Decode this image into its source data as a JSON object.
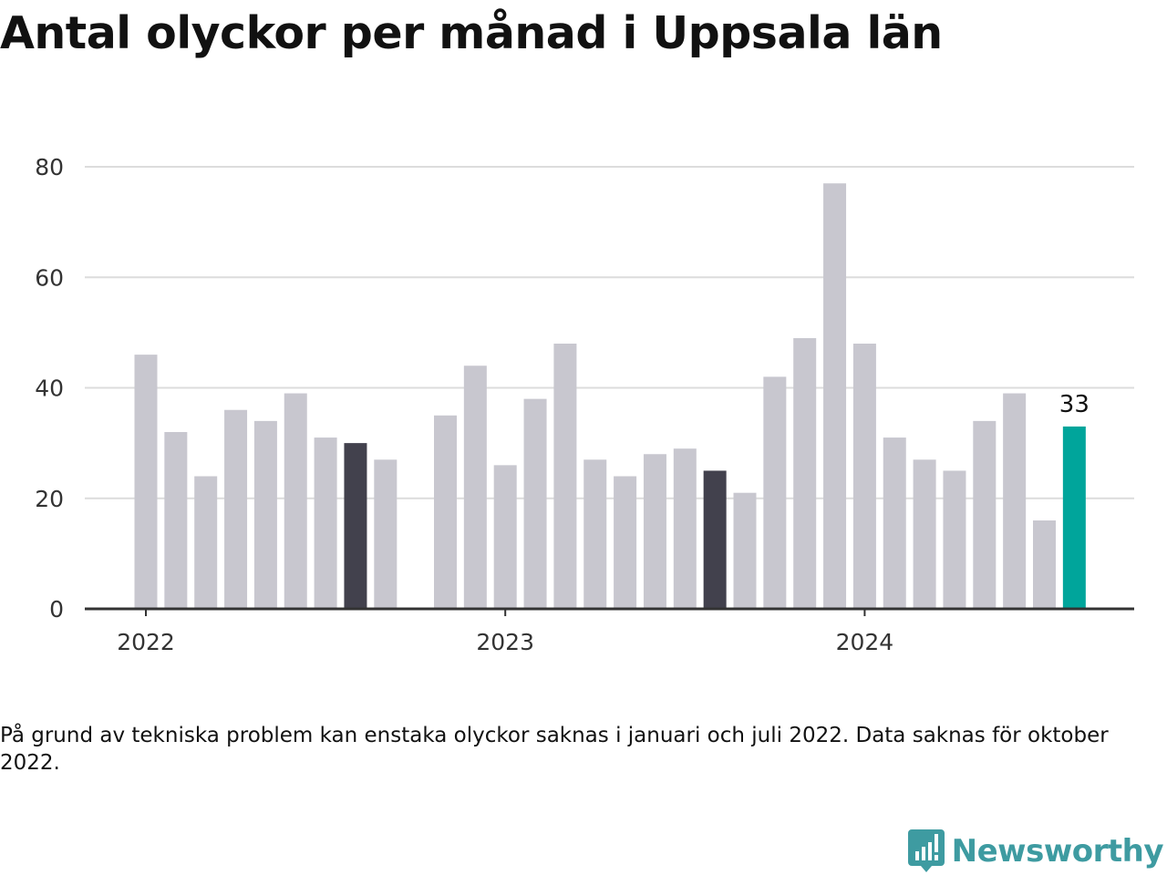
{
  "title": "Antal olyckor per månad i Uppsala län",
  "note": "På grund av tekniska problem kan enstaka olyckor saknas i januari och juli 2022. Data saknas för oktober 2022.",
  "brand": "Newsworthy",
  "colors": {
    "bar": "#c8c7cf",
    "highlight": "#42414d",
    "latest": "#00a59b",
    "grid": "#dcdcdc",
    "axis": "#333333",
    "brand": "#3e9ba1"
  },
  "chart_data": {
    "type": "bar",
    "x_ticks": [
      "2022",
      "2023",
      "2024"
    ],
    "ylim": [
      0,
      80
    ],
    "y_ticks": [
      0,
      20,
      40,
      60,
      80
    ],
    "grid": true,
    "series": [
      {
        "values": [
          46,
          32,
          24,
          36,
          34,
          39,
          31,
          30,
          27,
          null,
          35,
          44,
          26,
          38,
          48,
          27,
          24,
          28,
          29,
          25,
          21,
          42,
          49,
          77,
          48,
          31,
          27,
          25,
          34,
          39,
          16,
          33
        ],
        "highlight_indices": [
          7,
          19
        ],
        "latest_index": 31
      }
    ],
    "annotations": [
      {
        "index": 31,
        "text": "33"
      }
    ]
  }
}
